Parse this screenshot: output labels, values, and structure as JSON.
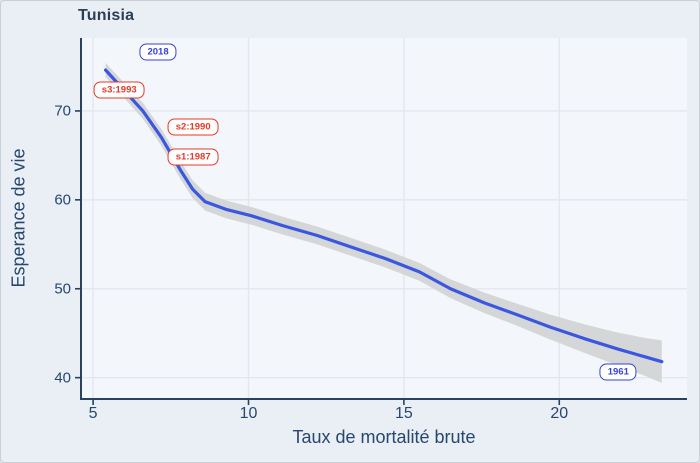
{
  "title": "Tunisia",
  "colors": {
    "background": "#eaeef5",
    "plot_background": "#f3f6fa",
    "grid": "#e2e6ee",
    "axis": "#2b425f",
    "text": "#26486f",
    "title_text": "#2b3f55",
    "line": "#3a57e0",
    "band": "#d3d4d6",
    "red_label": "#e5392b",
    "blue_label": "#3843d6",
    "label_bg": "#fefefe"
  },
  "chart_data": {
    "type": "line",
    "title": "Tunisia",
    "xlabel": "Taux de mortalité brute",
    "ylabel": "Esperance de vie",
    "xlim": [
      4.61,
      24.11
    ],
    "ylim": [
      37.6,
      78.2
    ],
    "xticks": [
      5,
      10,
      15,
      20
    ],
    "yticks": [
      70,
      60,
      50,
      40
    ],
    "grid": true,
    "legend": false,
    "series": [
      {
        "name": "esperance-de-vie-lowess-fit",
        "x": [
          5.4,
          6.0,
          6.6,
          7.2,
          7.8,
          8.2,
          8.6,
          9.3,
          10.1,
          11.1,
          12.2,
          13.3,
          14.4,
          15.5,
          16.5,
          17.6,
          18.7,
          19.7,
          20.8,
          21.9,
          22.8,
          23.3
        ],
        "y": [
          74.6,
          72.3,
          70.0,
          67.0,
          63.4,
          61.2,
          59.8,
          58.9,
          58.2,
          57.1,
          56.0,
          54.7,
          53.4,
          51.9,
          50.0,
          48.4,
          47.0,
          45.7,
          44.4,
          43.2,
          42.3,
          41.8
        ],
        "ci_halfwidth": [
          0.8,
          0.85,
          0.9,
          0.95,
          1.0,
          1.0,
          1.0,
          1.0,
          1.0,
          1.0,
          1.0,
          1.0,
          1.0,
          1.0,
          1.05,
          1.15,
          1.25,
          1.4,
          1.6,
          1.85,
          2.15,
          2.4
        ]
      }
    ],
    "annotations": [
      {
        "label": "2018",
        "style": "blue",
        "x": 7.09,
        "y": 76.6
      },
      {
        "label": "s3:1993",
        "style": "red",
        "x": 5.84,
        "y": 72.35
      },
      {
        "label": "s2:1990",
        "style": "red",
        "x": 8.22,
        "y": 68.2
      },
      {
        "label": "s1:1987",
        "style": "red",
        "x": 8.22,
        "y": 64.8
      },
      {
        "label": "1961",
        "style": "blue",
        "x": 21.9,
        "y": 40.6
      }
    ]
  }
}
